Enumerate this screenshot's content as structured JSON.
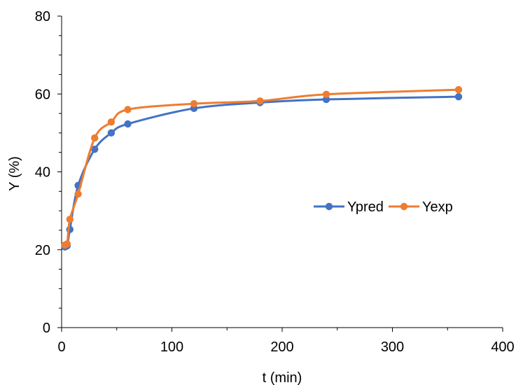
{
  "chart_data": {
    "type": "line",
    "xlabel": "t (min)",
    "ylabel": "Y (%)",
    "xlim": [
      0,
      400
    ],
    "ylim": [
      0,
      80
    ],
    "x_ticks": [
      0,
      100,
      200,
      300,
      400
    ],
    "y_ticks": [
      0,
      20,
      40,
      60,
      80
    ],
    "grid": false,
    "smooth": true,
    "legend_position": "right-middle",
    "series": [
      {
        "name": "Ypred",
        "color": "#4472C4",
        "marker": "circle",
        "x": [
          3,
          5,
          7.5,
          15,
          30,
          45,
          60,
          120,
          180,
          240,
          360
        ],
        "y": [
          20.7,
          21.0,
          25.2,
          36.5,
          45.8,
          50.0,
          52.3,
          56.3,
          57.8,
          58.6,
          59.3
        ]
      },
      {
        "name": "Yexp",
        "color": "#ED7D31",
        "marker": "circle",
        "x": [
          3,
          5,
          7.5,
          15,
          30,
          45,
          60,
          120,
          180,
          240,
          360
        ],
        "y": [
          21.2,
          21.5,
          27.8,
          34.3,
          48.7,
          52.8,
          56.0,
          57.5,
          58.2,
          59.9,
          61.1
        ]
      }
    ]
  }
}
